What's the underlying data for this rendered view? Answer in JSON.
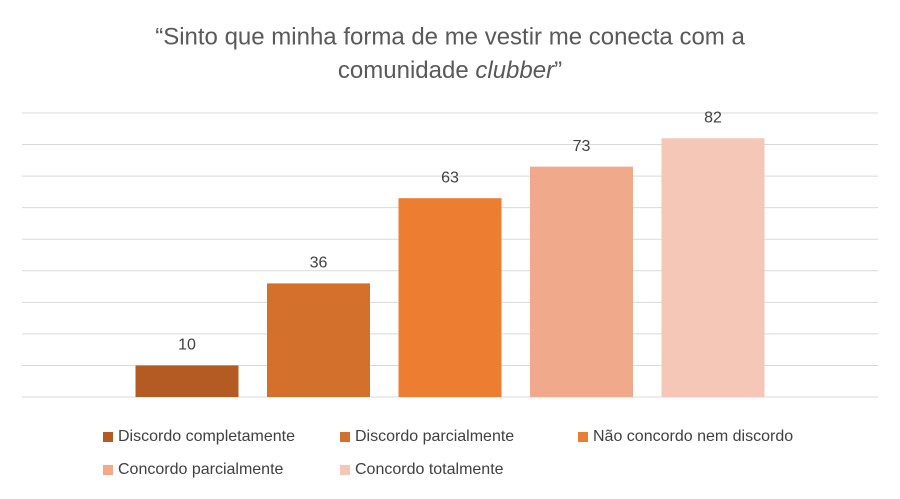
{
  "chart_data": {
    "type": "bar",
    "title": [
      "“Sinto que minha forma de me vestir me conecta com a",
      "comunidade",
      "clubber",
      "”"
    ],
    "categories": [
      null
    ],
    "series": [
      {
        "name": "Discordo completamente",
        "color": "#b35b22",
        "values": [
          10
        ]
      },
      {
        "name": "Discordo parcialmente",
        "color": "#d2702c",
        "values": [
          36
        ]
      },
      {
        "name": "Não concordo nem discordo",
        "color": "#ed7d31",
        "values": [
          63
        ]
      },
      {
        "name": "Concordo  parcialmente",
        "color": "#f0a98a",
        "values": [
          73
        ]
      },
      {
        "name": "Concordo totalmente",
        "color": "#f5c7b6",
        "values": [
          82
        ]
      }
    ],
    "ylim": [
      0,
      90
    ],
    "yticks": [
      0,
      10,
      20,
      30,
      40,
      50,
      60,
      70,
      80,
      90
    ],
    "grid": true,
    "legend": "bottom"
  }
}
